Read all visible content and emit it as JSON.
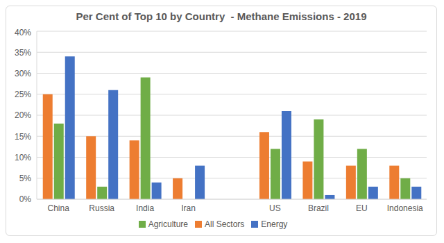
{
  "chart_data": {
    "type": "bar",
    "title": "Per Cent of Top 10 by Country  - Methane Emissions - 2019",
    "categories": [
      "China",
      "Russia",
      "India",
      "Iran",
      null,
      "US",
      "Brazil",
      "EU",
      "Indonesia"
    ],
    "series": [
      {
        "name": "All Sectors",
        "color": "#ed7d31",
        "values": [
          25,
          15,
          14,
          5,
          null,
          16,
          9,
          8,
          8
        ]
      },
      {
        "name": "Agriculture",
        "color": "#70ad47",
        "values": [
          18,
          3,
          29,
          0,
          null,
          12,
          19,
          12,
          5
        ]
      },
      {
        "name": "Energy",
        "color": "#4472c4",
        "values": [
          34,
          26,
          4,
          8,
          null,
          21,
          1,
          3,
          3
        ]
      }
    ],
    "ylim": [
      0,
      40
    ],
    "yticks": [
      {
        "value": 0,
        "label": "0%"
      },
      {
        "value": 5,
        "label": "5%"
      },
      {
        "value": 10,
        "label": "10%"
      },
      {
        "value": 15,
        "label": "15%"
      },
      {
        "value": 20,
        "label": "20%"
      },
      {
        "value": 25,
        "label": "25%"
      },
      {
        "value": 30,
        "label": "30%"
      },
      {
        "value": 35,
        "label": "35%"
      },
      {
        "value": 40,
        "label": "40%"
      }
    ],
    "grid": true,
    "legend": "bottom"
  }
}
